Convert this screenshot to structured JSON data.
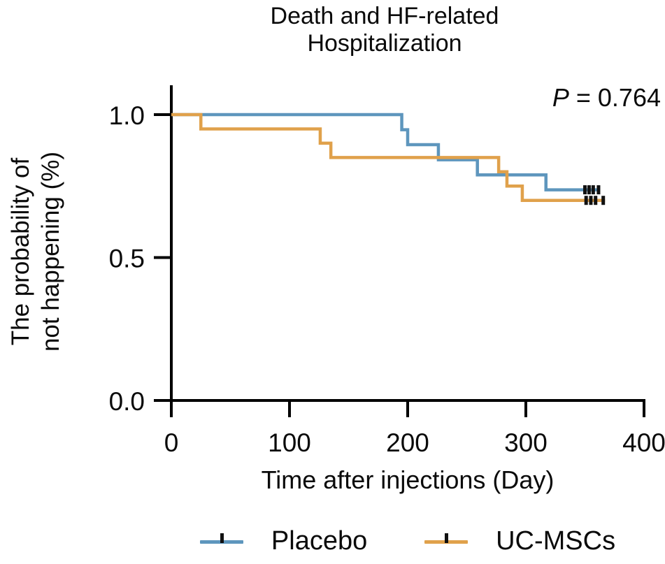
{
  "figure": {
    "title_line1": "Death and HF-related",
    "title_line2": "Hospitalization",
    "p_label_italic": "P",
    "p_label_rest": " = 0.764",
    "y_axis_label_line1": "The probability of",
    "y_axis_label_line2": "not happening (%)",
    "x_axis_label": "Time after injections (Day)"
  },
  "colors": {
    "placebo": "#5E96BD",
    "uc_mscs": "#E0A14B",
    "axis": "#000000",
    "censor_mark": "#111111",
    "background": "#FFFFFF"
  },
  "legend": {
    "position": "bottom",
    "items": [
      {
        "label": "Placebo",
        "color": "#5E96BD"
      },
      {
        "label": "UC-MSCs",
        "color": "#E0A14B"
      }
    ]
  },
  "chart_data": {
    "type": "line",
    "subtype": "kaplan-meier-step-curve",
    "title": "Death and HF-related Hospitalization",
    "xlabel": "Time after injections (Day)",
    "ylabel": "The probability of not happening (%)",
    "annotation": "P = 0.764",
    "xlim": [
      0,
      400
    ],
    "ylim": [
      0.0,
      1.0
    ],
    "x_ticks": [
      "0",
      "100",
      "200",
      "300",
      "400"
    ],
    "x_tick_values": [
      0,
      100,
      200,
      300,
      400
    ],
    "y_ticks": [
      "1.0",
      "0.5",
      "0.0"
    ],
    "y_tick_values": [
      1.0,
      0.5,
      0.0
    ],
    "grid": false,
    "legend_position": "bottom",
    "series": [
      {
        "name": "Placebo",
        "color": "#5E96BD",
        "steps": [
          [
            0,
            1.0
          ],
          [
            195,
            0.947
          ],
          [
            200,
            0.895
          ],
          [
            226,
            0.842
          ],
          [
            259,
            0.789
          ],
          [
            317,
            0.737
          ]
        ],
        "end_day": 362,
        "censor_days": [
          350,
          353.5,
          357,
          361.5
        ],
        "censor_level": 0.737
      },
      {
        "name": "UC-MSCs",
        "color": "#E0A14B",
        "steps": [
          [
            0,
            1.0
          ],
          [
            25,
            0.95
          ],
          [
            126,
            0.9
          ],
          [
            135,
            0.85
          ],
          [
            277,
            0.8
          ],
          [
            284,
            0.75
          ],
          [
            297,
            0.7
          ]
        ],
        "end_day": 367,
        "censor_days": [
          351,
          355,
          359,
          365.5
        ],
        "censor_level": 0.7
      }
    ]
  }
}
